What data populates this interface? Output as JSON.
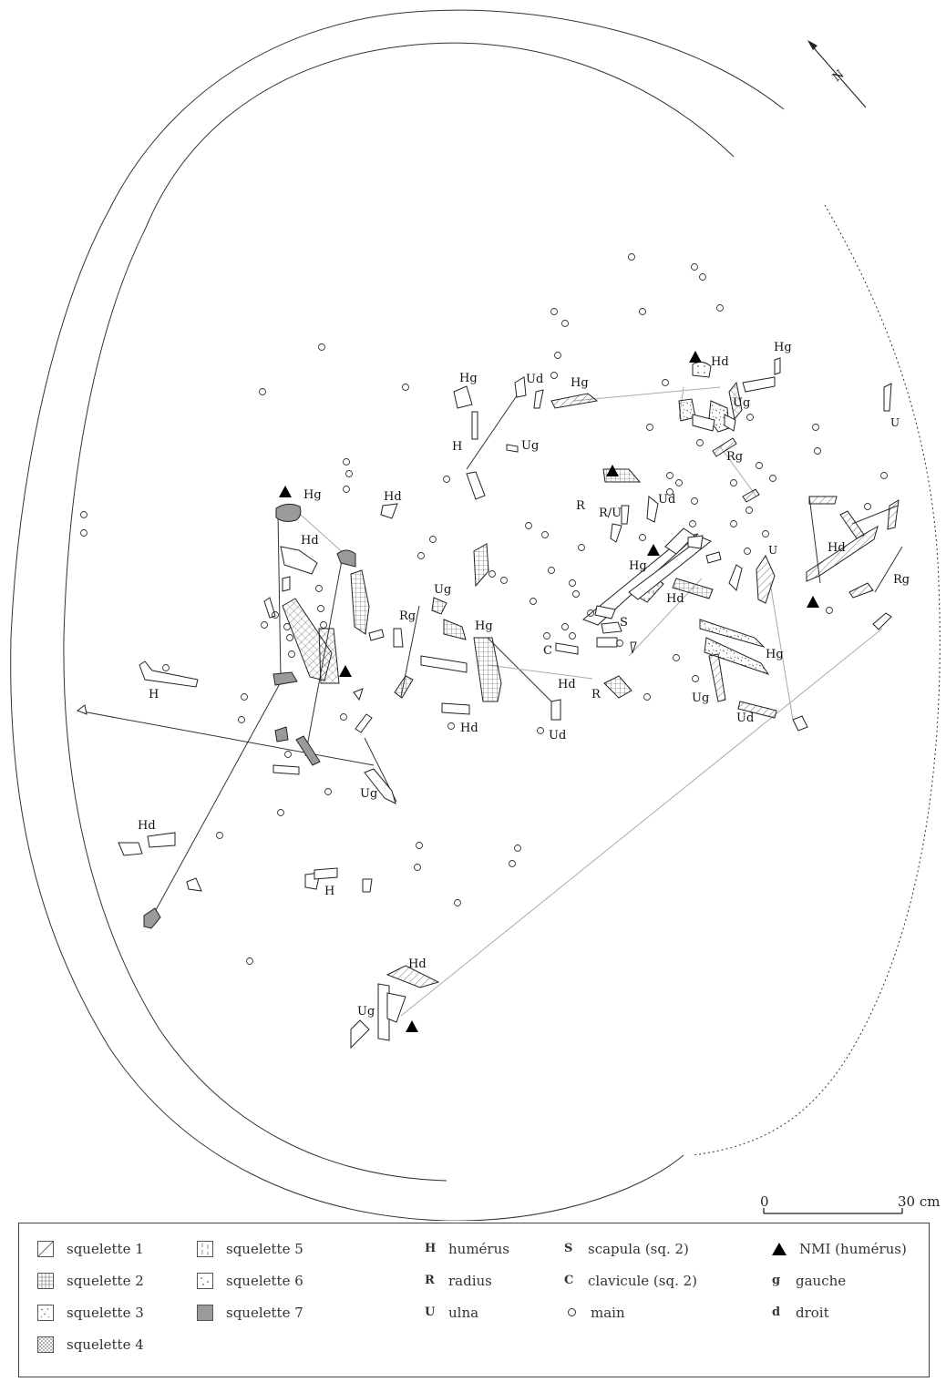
{
  "map": {
    "north_symbol": "N",
    "scale": {
      "min_label": "0",
      "max_label": "30 cm"
    },
    "labels": [
      {
        "text": "Hg"
      },
      {
        "text": "Hd"
      },
      {
        "text": "Hd"
      },
      {
        "text": "H"
      },
      {
        "text": "Hd"
      },
      {
        "text": "H"
      },
      {
        "text": "Ug"
      },
      {
        "text": "Rg"
      },
      {
        "text": "Ug"
      },
      {
        "text": "Hg"
      },
      {
        "text": "Hd"
      },
      {
        "text": "Ud"
      },
      {
        "text": "Hg"
      },
      {
        "text": "Ud"
      },
      {
        "text": "Hg"
      },
      {
        "text": "H"
      },
      {
        "text": "Ug"
      },
      {
        "text": "Hd"
      },
      {
        "text": "Hg"
      },
      {
        "text": "Ud"
      },
      {
        "text": "R"
      },
      {
        "text": "R/U"
      },
      {
        "text": "Hg"
      },
      {
        "text": "Hd"
      },
      {
        "text": "S"
      },
      {
        "text": "C"
      },
      {
        "text": "Hd"
      },
      {
        "text": "R"
      },
      {
        "text": "Hd"
      },
      {
        "text": "Ug"
      },
      {
        "text": "Ug"
      },
      {
        "text": "Rg"
      },
      {
        "text": "U"
      },
      {
        "text": "U"
      },
      {
        "text": "Hd"
      },
      {
        "text": "Rg"
      },
      {
        "text": "Hg"
      },
      {
        "text": "Ug"
      },
      {
        "text": "Ud"
      }
    ]
  },
  "legend": {
    "skeletons": [
      {
        "label": "squelette 1",
        "pattern": "hatch-diagonal"
      },
      {
        "label": "squelette 2",
        "pattern": "grid"
      },
      {
        "label": "squelette 3",
        "pattern": "speckle"
      },
      {
        "label": "squelette 4",
        "pattern": "crosshatch"
      },
      {
        "label": "squelette 5",
        "pattern": "hatch-vertical-dashed"
      },
      {
        "label": "squelette 6",
        "pattern": "dots"
      },
      {
        "label": "squelette 7",
        "pattern": "solid-grey",
        "color": "#9a9a9a"
      }
    ],
    "bones": [
      {
        "abbr": "H",
        "label": "humérus"
      },
      {
        "abbr": "R",
        "label": "radius"
      },
      {
        "abbr": "U",
        "label": "ulna"
      }
    ],
    "others": [
      {
        "abbr": "S",
        "label": "scapula (sq. 2)"
      },
      {
        "abbr": "C",
        "label": "clavicule (sq. 2)"
      },
      {
        "icon": "circle-icon",
        "label": "main"
      }
    ],
    "notation": [
      {
        "icon": "triangle-icon",
        "label": "NMI (humérus)"
      },
      {
        "abbr": "g",
        "label": "gauche"
      },
      {
        "abbr": "d",
        "label": "droit"
      }
    ]
  }
}
